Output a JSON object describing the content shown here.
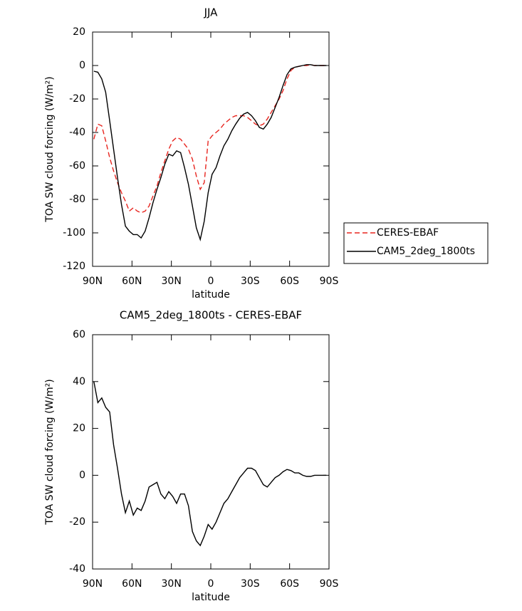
{
  "chart_data": [
    {
      "type": "line",
      "title": "JJA",
      "xlabel": "latitude",
      "ylabel": "TOA SW cloud forcing (W/m²)",
      "x": [
        89,
        86,
        83,
        80,
        77,
        74,
        71,
        68,
        65,
        62,
        59,
        56,
        53,
        50,
        47,
        44,
        41,
        38,
        35,
        32,
        29,
        26,
        23,
        20,
        17,
        14,
        11,
        8,
        5,
        2,
        -1,
        -4,
        -7,
        -10,
        -13,
        -16,
        -19,
        -22,
        -25,
        -28,
        -31,
        -34,
        -37,
        -40,
        -43,
        -46,
        -49,
        -52,
        -55,
        -58,
        -61,
        -64,
        -67,
        -70,
        -73,
        -76,
        -79,
        -82,
        -85,
        -88
      ],
      "series": [
        {
          "name": "CERES-EBAF",
          "color": "#e8251f",
          "linestyle": "dashed",
          "values": [
            -44,
            -35,
            -36,
            -45,
            -55,
            -63,
            -70,
            -76,
            -81,
            -87,
            -85,
            -87,
            -88,
            -87,
            -84,
            -78,
            -72,
            -64,
            -57,
            -50,
            -45,
            -43,
            -44,
            -47,
            -50,
            -56,
            -66,
            -74,
            -70,
            -45,
            -42,
            -40,
            -38,
            -35,
            -33,
            -31,
            -30,
            -30,
            -30,
            -31,
            -33,
            -35,
            -36,
            -35,
            -32,
            -28,
            -24,
            -20,
            -15,
            -8,
            -3,
            -1,
            -0.5,
            0,
            0,
            0.5,
            0,
            0,
            0,
            0
          ]
        },
        {
          "name": "CAM5_2deg_1800ts",
          "color": "#000000",
          "linestyle": "solid",
          "values": [
            -3.4,
            -4,
            -8,
            -16,
            -33,
            -50,
            -67,
            -83,
            -96,
            -99,
            -101,
            -101,
            -103,
            -99,
            -91,
            -82,
            -74,
            -67,
            -59,
            -53,
            -54,
            -51,
            -52,
            -61,
            -71,
            -84,
            -97,
            -104,
            -93,
            -76,
            -65,
            -61,
            -54,
            -48,
            -44,
            -39,
            -35,
            -31.5,
            -29,
            -28,
            -30,
            -33,
            -37,
            -38,
            -35,
            -31,
            -25,
            -19,
            -12,
            -5.5,
            -2,
            -1,
            -0.5,
            0,
            0.5,
            0.5,
            0,
            0,
            0,
            0
          ]
        }
      ],
      "xlim": [
        90,
        -90
      ],
      "xticks": [
        {
          "value": 90,
          "label": "90N"
        },
        {
          "value": 60,
          "label": "60N"
        },
        {
          "value": 30,
          "label": "30N"
        },
        0,
        {
          "value": -30,
          "label": "30S"
        },
        {
          "value": -60,
          "label": "60S"
        },
        {
          "value": -90,
          "label": "90S"
        }
      ],
      "ylim": [
        -120,
        20
      ],
      "yticks": [
        -120,
        -100,
        -80,
        -60,
        -40,
        -20,
        0,
        20
      ],
      "legend": "right"
    },
    {
      "type": "line",
      "title": "CAM5_2deg_1800ts - CERES-EBAF",
      "xlabel": "latitude",
      "ylabel": "TOA SW cloud forcing (W/m²)",
      "x": [
        89,
        86,
        83,
        80,
        77,
        74,
        71,
        68,
        65,
        62,
        59,
        56,
        53,
        50,
        47,
        44,
        41,
        38,
        35,
        32,
        29,
        26,
        23,
        20,
        17,
        14,
        11,
        8,
        5,
        2,
        -1,
        -4,
        -7,
        -10,
        -13,
        -16,
        -19,
        -22,
        -25,
        -28,
        -31,
        -34,
        -37,
        -40,
        -43,
        -46,
        -49,
        -52,
        -55,
        -58,
        -61,
        -64,
        -67,
        -70,
        -73,
        -76,
        -79,
        -82,
        -85,
        -88
      ],
      "color": "#000000",
      "values": [
        40,
        31,
        33,
        29,
        27,
        13,
        3,
        -8,
        -16,
        -11,
        -17,
        -14,
        -15,
        -11,
        -5,
        -4,
        -3,
        -8,
        -10,
        -7,
        -9,
        -12,
        -8,
        -8,
        -13,
        -24,
        -28,
        -30,
        -26,
        -21,
        -23,
        -20,
        -16,
        -12,
        -10,
        -7,
        -4,
        -1,
        1,
        3,
        3,
        2,
        -1,
        -4,
        -5,
        -3,
        -1,
        0,
        1.5,
        2.5,
        2,
        1,
        1,
        0,
        -0.5,
        -0.5,
        0,
        0,
        0,
        0
      ],
      "xlim": [
        90,
        -90
      ],
      "xticks": [
        {
          "value": 90,
          "label": "90N"
        },
        {
          "value": 60,
          "label": "60N"
        },
        {
          "value": 30,
          "label": "30N"
        },
        0,
        {
          "value": -30,
          "label": "30S"
        },
        {
          "value": -60,
          "label": "60S"
        },
        {
          "value": -90,
          "label": "90S"
        }
      ],
      "ylim": [
        -40,
        60
      ],
      "yticks": [
        -40,
        -20,
        0,
        20,
        40,
        60
      ]
    }
  ]
}
